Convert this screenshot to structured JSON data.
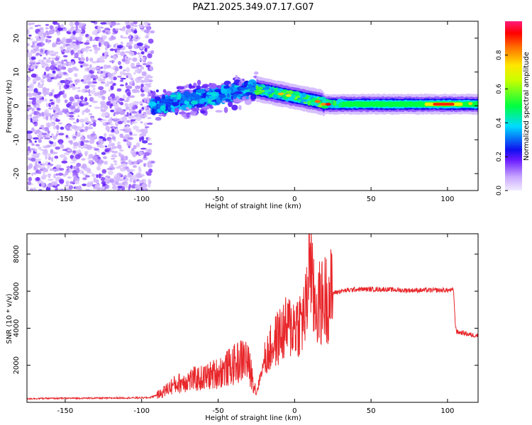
{
  "chart_data": [
    {
      "type": "heatmap",
      "title": "PAZ1.2025.349.07.17.G07",
      "xlabel": "Height of straight line (km)",
      "ylabel": "Frequency (Hz)",
      "xlim": [
        -175,
        120
      ],
      "ylim": [
        -25,
        25
      ],
      "x_ticks": [
        -150,
        -100,
        -50,
        0,
        50,
        100
      ],
      "y_ticks": [
        -20,
        -10,
        0,
        10,
        20
      ],
      "colorbar": {
        "label": "Normalized spectral amplitude",
        "range": [
          0,
          1
        ],
        "ticks": [
          0.0,
          0.2,
          0.4,
          0.6,
          0.8
        ]
      },
      "features": [
        {
          "name": "noise-region",
          "x_range": [
            -175,
            -93
          ],
          "freq_range": [
            -25,
            25
          ],
          "amplitude": 0.1
        },
        {
          "name": "transition-band",
          "x_range": [
            -93,
            -25
          ],
          "freq_center": [
            0,
            5
          ],
          "amplitude": 0.3
        },
        {
          "name": "main-signal-trace",
          "x_range": [
            -25,
            120
          ],
          "freq_center": [
            5,
            0
          ],
          "amplitude": 0.6
        },
        {
          "name": "peak-amplitude-band",
          "x_range": [
            85,
            110
          ],
          "freq_center": 0.5,
          "amplitude": 0.9
        }
      ]
    },
    {
      "type": "line",
      "xlabel": "Height of straight line (km)",
      "ylabel": "SNR (10 * v/v)",
      "xlim": [
        -175,
        120
      ],
      "ylim": [
        0,
        9100
      ],
      "x_ticks": [
        -150,
        -100,
        -50,
        0,
        50,
        100
      ],
      "y_ticks": [
        2000,
        4000,
        6000,
        8000
      ],
      "series": [
        {
          "name": "SNR",
          "color": "#e8262a",
          "x": [
            -175,
            -150,
            -120,
            -95,
            -88,
            -80,
            -70,
            -60,
            -50,
            -40,
            -32,
            -28,
            -25,
            -20,
            -15,
            -10,
            -5,
            0,
            5,
            8,
            10,
            12,
            15,
            20,
            25,
            30,
            40,
            50,
            60,
            70,
            80,
            90,
            100,
            104,
            105,
            106,
            110,
            115,
            120
          ],
          "y": [
            200,
            220,
            230,
            250,
            450,
            900,
            1200,
            1300,
            1600,
            2000,
            2400,
            1500,
            500,
            2200,
            3000,
            3600,
            4000,
            4200,
            4400,
            5200,
            8800,
            5500,
            5200,
            5600,
            5900,
            6000,
            6100,
            6100,
            6100,
            6050,
            6050,
            6050,
            6050,
            6050,
            4300,
            3800,
            3750,
            3650,
            3600
          ]
        }
      ]
    }
  ]
}
